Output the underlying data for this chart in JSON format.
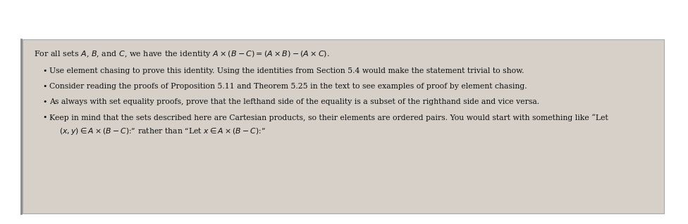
{
  "outer_bg": "#ffffff",
  "box_bg": "#d6d0c8",
  "box_edge": "#aaaaaa",
  "text_color": "#111111",
  "title_line": "For all sets $A$, $B$, and $C$, we have the identity $A \\times (B - C) = (A \\times B) - (A \\times C)$.",
  "bullet1": "Use element chasing to prove this identity. Using the identities from Section 5.4 would make the statement trivial to show.",
  "bullet2": "Consider reading the proofs of Proposition 5.11 and Theorem 5.25 in the text to see examples of proof by element chasing.",
  "bullet3": "As always with set equality proofs, prove that the lefthand side of the equality is a subset of the righthand side and vice versa.",
  "bullet4": "Keep in mind that the sets described here are Cartesian products, so their elements are ordered pairs. You would start with something like “Let",
  "bullet4_cont": "$(x, y) \\in A \\times (B - C)$:” rather than “Let $x \\in A \\times (B - C)$:”",
  "figsize": [
    9.76,
    3.19
  ],
  "dpi": 100
}
